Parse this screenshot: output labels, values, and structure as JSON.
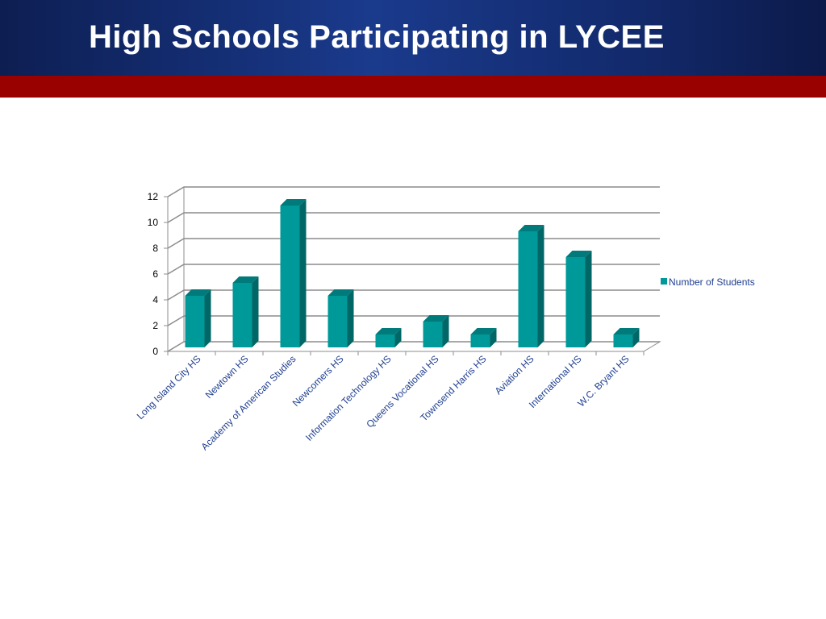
{
  "slide": {
    "title": "High Schools Participating in LYCEE",
    "colors": {
      "header_blue": "#1a3a8c",
      "stripe_red": "#990000"
    }
  },
  "chart_data": {
    "type": "bar",
    "style": "3d-column",
    "categories": [
      "Long Island City HS",
      "Newtown HS",
      "Academy of American Studies",
      "Newcomers HS",
      "Information Technology HS",
      "Queens Vocational HS",
      "Townsend Harris HS",
      "Aviation HS",
      "International HS",
      "W.C. Bryant HS"
    ],
    "series": [
      {
        "name": "Number of Students",
        "values": [
          4,
          5,
          11,
          4,
          1,
          2,
          1,
          9,
          7,
          1
        ],
        "color": "#009999"
      }
    ],
    "ylim": [
      0,
      12
    ],
    "yticks": [
      0,
      2,
      4,
      6,
      8,
      10,
      12
    ],
    "grid": true,
    "legend": "right"
  }
}
